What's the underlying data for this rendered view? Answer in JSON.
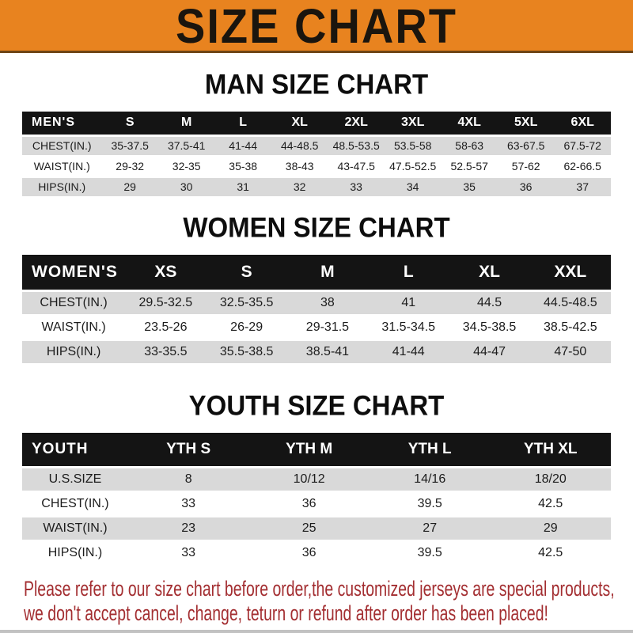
{
  "banner": {
    "title": "SIZE CHART",
    "bg_color": "#E8831F",
    "text_color": "#1A150E"
  },
  "colors": {
    "table_header_bg": "#141414",
    "table_header_text": "#FFFFFF",
    "row_gray": "#D9D9D9",
    "row_white": "#FFFFFF",
    "disclaimer_red": "#A32E31"
  },
  "chart_data": [
    {
      "type": "table",
      "title": "MAN SIZE CHART",
      "label": "MEN'S",
      "columns": [
        "S",
        "M",
        "L",
        "XL",
        "2XL",
        "3XL",
        "4XL",
        "5XL",
        "6XL"
      ],
      "rows": [
        {
          "label": "CHEST(IN.)",
          "values": [
            "35-37.5",
            "37.5-41",
            "41-44",
            "44-48.5",
            "48.5-53.5",
            "53.5-58",
            "58-63",
            "63-67.5",
            "67.5-72"
          ]
        },
        {
          "label": "WAIST(IN.)",
          "values": [
            "29-32",
            "32-35",
            "35-38",
            "38-43",
            "43-47.5",
            "47.5-52.5",
            "52.5-57",
            "57-62",
            "62-66.5"
          ]
        },
        {
          "label": "HIPS(IN.)",
          "values": [
            "29",
            "30",
            "31",
            "32",
            "33",
            "34",
            "35",
            "36",
            "37"
          ]
        }
      ]
    },
    {
      "type": "table",
      "title": "WOMEN SIZE CHART",
      "label": "WOMEN'S",
      "columns": [
        "XS",
        "S",
        "M",
        "L",
        "XL",
        "XXL"
      ],
      "rows": [
        {
          "label": "CHEST(IN.)",
          "values": [
            "29.5-32.5",
            "32.5-35.5",
            "38",
            "41",
            "44.5",
            "44.5-48.5"
          ]
        },
        {
          "label": "WAIST(IN.)",
          "values": [
            "23.5-26",
            "26-29",
            "29-31.5",
            "31.5-34.5",
            "34.5-38.5",
            "38.5-42.5"
          ]
        },
        {
          "label": "HIPS(IN.)",
          "values": [
            "33-35.5",
            "35.5-38.5",
            "38.5-41",
            "41-44",
            "44-47",
            "47-50"
          ]
        }
      ]
    },
    {
      "type": "table",
      "title": "YOUTH SIZE CHART",
      "label": "YOUTH",
      "columns": [
        "YTH S",
        "YTH M",
        "YTH L",
        "YTH XL"
      ],
      "rows": [
        {
          "label": "U.S.SIZE",
          "values": [
            "8",
            "10/12",
            "14/16",
            "18/20"
          ]
        },
        {
          "label": "CHEST(IN.)",
          "values": [
            "33",
            "36",
            "39.5",
            "42.5"
          ]
        },
        {
          "label": "WAIST(IN.)",
          "values": [
            "23",
            "25",
            "27",
            "29"
          ]
        },
        {
          "label": "HIPS(IN.)",
          "values": [
            "33",
            "36",
            "39.5",
            "42.5"
          ]
        }
      ]
    }
  ],
  "disclaimer": {
    "line1": "Please refer to our size chart before order,the customized jerseys are special products,",
    "line2": "we don't accept cancel, change, teturn or refund after order has been placed!"
  }
}
